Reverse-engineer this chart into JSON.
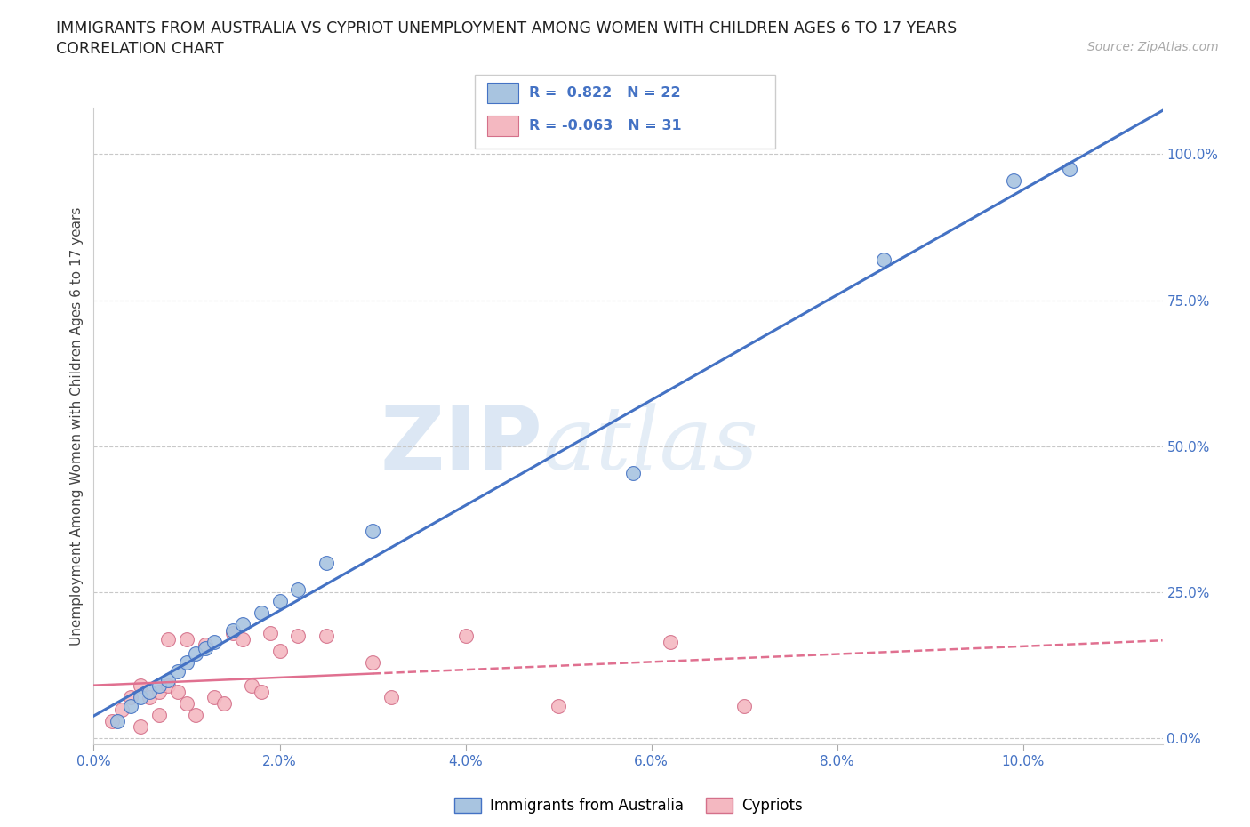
{
  "title_line1": "IMMIGRANTS FROM AUSTRALIA VS CYPRIOT UNEMPLOYMENT AMONG WOMEN WITH CHILDREN AGES 6 TO 17 YEARS",
  "title_line2": "CORRELATION CHART",
  "source_text": "Source: ZipAtlas.com",
  "ylabel": "Unemployment Among Women with Children Ages 6 to 17 years",
  "watermark_zip": "ZIP",
  "watermark_atlas": "atlas",
  "xlim": [
    0.0,
    0.115
  ],
  "ylim": [
    -0.01,
    1.08
  ],
  "xticks": [
    0.0,
    0.02,
    0.04,
    0.06,
    0.08,
    0.1
  ],
  "yticks": [
    0.0,
    0.25,
    0.5,
    0.75,
    1.0
  ],
  "xtick_labels": [
    "0.0%",
    "2.0%",
    "4.0%",
    "6.0%",
    "8.0%",
    "10.0%"
  ],
  "ytick_labels": [
    "0.0%",
    "25.0%",
    "50.0%",
    "75.0%",
    "100.0%"
  ],
  "blue_fill": "#a8c4e0",
  "blue_edge": "#4472c4",
  "pink_fill": "#f4b8c1",
  "pink_edge": "#d4708a",
  "pink_line_color": "#e07090",
  "blue_R": 0.822,
  "blue_N": 22,
  "pink_R": -0.063,
  "pink_N": 31,
  "blue_scatter_x": [
    0.0025,
    0.004,
    0.005,
    0.006,
    0.007,
    0.008,
    0.009,
    0.01,
    0.011,
    0.012,
    0.013,
    0.015,
    0.016,
    0.018,
    0.02,
    0.022,
    0.025,
    0.03,
    0.058,
    0.085,
    0.099,
    0.105
  ],
  "blue_scatter_y": [
    0.03,
    0.055,
    0.07,
    0.08,
    0.09,
    0.1,
    0.115,
    0.13,
    0.145,
    0.155,
    0.165,
    0.185,
    0.195,
    0.215,
    0.235,
    0.255,
    0.3,
    0.355,
    0.455,
    0.82,
    0.955,
    0.975
  ],
  "pink_scatter_x": [
    0.002,
    0.003,
    0.004,
    0.005,
    0.005,
    0.006,
    0.007,
    0.007,
    0.008,
    0.008,
    0.009,
    0.01,
    0.01,
    0.011,
    0.012,
    0.013,
    0.014,
    0.015,
    0.016,
    0.017,
    0.018,
    0.019,
    0.02,
    0.022,
    0.025,
    0.03,
    0.032,
    0.04,
    0.05,
    0.062,
    0.07
  ],
  "pink_scatter_y": [
    0.03,
    0.05,
    0.07,
    0.02,
    0.09,
    0.07,
    0.04,
    0.08,
    0.09,
    0.17,
    0.08,
    0.06,
    0.17,
    0.04,
    0.16,
    0.07,
    0.06,
    0.18,
    0.17,
    0.09,
    0.08,
    0.18,
    0.15,
    0.175,
    0.175,
    0.13,
    0.07,
    0.175,
    0.055,
    0.165,
    0.055
  ],
  "legend_blue_label": "Immigrants from Australia",
  "legend_pink_label": "Cypriots",
  "bg_color": "#ffffff",
  "grid_color": "#c8c8c8",
  "title_color": "#222222",
  "axis_color": "#4472c4",
  "ylabel_color": "#444444"
}
